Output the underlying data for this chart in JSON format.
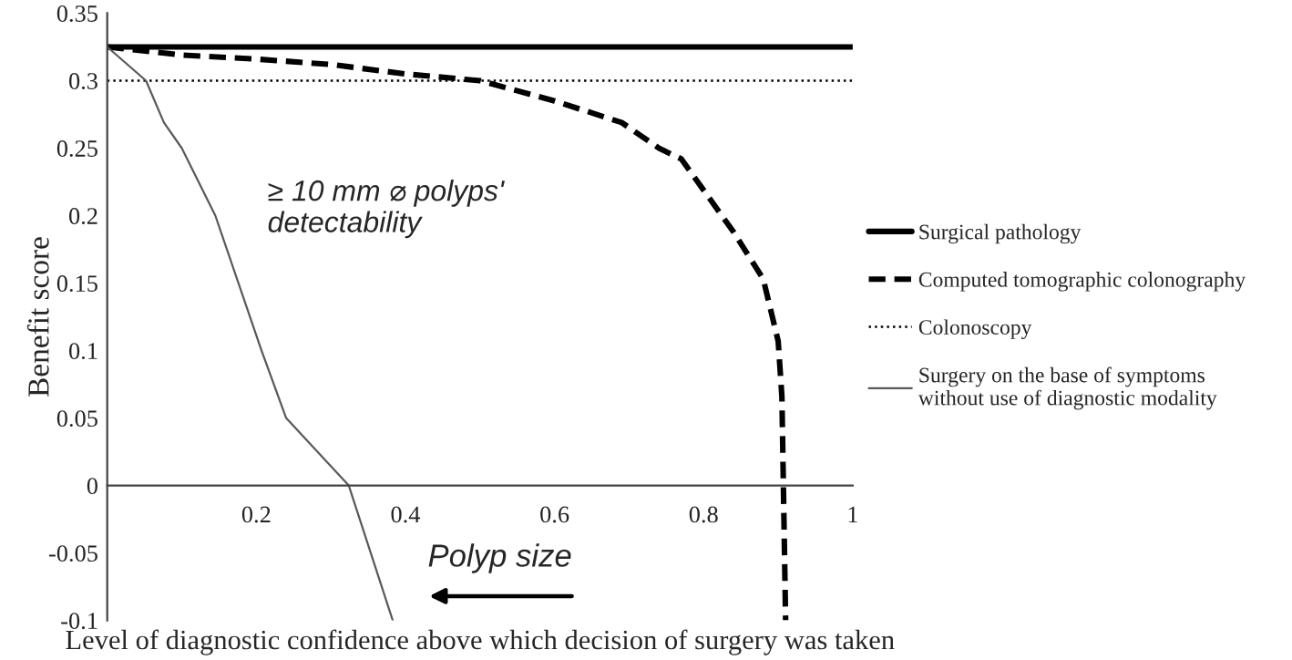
{
  "chart_data": {
    "type": "line",
    "xlabel": "Level of diagnostic confidence above which decision of surgery was taken",
    "ylabel": "Benefit score",
    "xlim": [
      0,
      1
    ],
    "xticks": [
      0.2,
      0.4,
      0.6,
      0.8,
      1
    ],
    "ylim": [
      -0.1,
      0.35
    ],
    "yticks": [
      -0.1,
      -0.05,
      0,
      0.05,
      0.1,
      0.15,
      0.2,
      0.25,
      0.3,
      0.35
    ],
    "grid": false,
    "legend": "right",
    "marker": "none",
    "annotations": [
      "≥ 10 mm ⌀ polyps' detectability",
      "Polyp size"
    ],
    "series": [
      {
        "name": "Surgical pathology",
        "color": "#000000",
        "line_style": "solid",
        "x": [
          0,
          1
        ],
        "values": [
          0.325,
          0.325
        ]
      },
      {
        "name": "Computed tomographic colonography",
        "color": "#000000",
        "line_style": "dashed",
        "x": [
          0,
          0.1,
          0.2,
          0.3,
          0.4,
          0.5,
          0.6,
          0.69,
          0.74,
          0.77,
          0.84,
          0.88,
          0.9,
          0.905,
          0.907,
          0.91
        ],
        "values": [
          0.325,
          0.319,
          0.316,
          0.312,
          0.305,
          0.3,
          0.285,
          0.269,
          0.25,
          0.242,
          0.188,
          0.153,
          0.107,
          0.066,
          0,
          -0.1
        ]
      },
      {
        "name": "Colonoscopy",
        "color": "#000000",
        "line_style": "dotted",
        "x": [
          0,
          1
        ],
        "values": [
          0.3,
          0.3
        ]
      },
      {
        "name": "Surgery on the base of symptoms\nwithout use of diagnostic modality",
        "color": "#595959",
        "line_style": "solid",
        "x": [
          0,
          0.052,
          0.076,
          0.1,
          0.145,
          0.207,
          0.24,
          0.324,
          0.383
        ],
        "values": [
          0.325,
          0.3,
          0.269,
          0.25,
          0.2,
          0.1,
          0.05,
          0,
          -0.1
        ]
      }
    ]
  }
}
